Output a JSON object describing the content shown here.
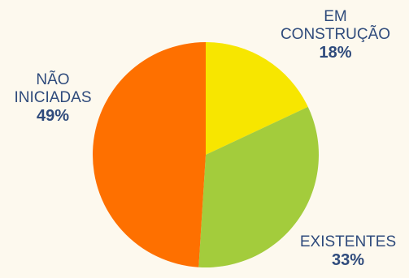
{
  "chart_data": {
    "type": "pie",
    "slices": [
      {
        "label_lines": [
          "EM",
          "CONSTRUÇÃO"
        ],
        "value": 18,
        "value_label": "18%",
        "color": "#f7e600"
      },
      {
        "label_lines": [
          "EXISTENTES"
        ],
        "value": 33,
        "value_label": "33%",
        "color": "#a3cc3c"
      },
      {
        "label_lines": [
          "NÃO",
          "INICIADAS"
        ],
        "value": 49,
        "value_label": "49%",
        "color": "#fe7000"
      }
    ],
    "start_angle": "12 o'clock",
    "direction": "clockwise",
    "legend": "none",
    "label_color": "#2f4b7c",
    "background": "#fdf9ee"
  }
}
